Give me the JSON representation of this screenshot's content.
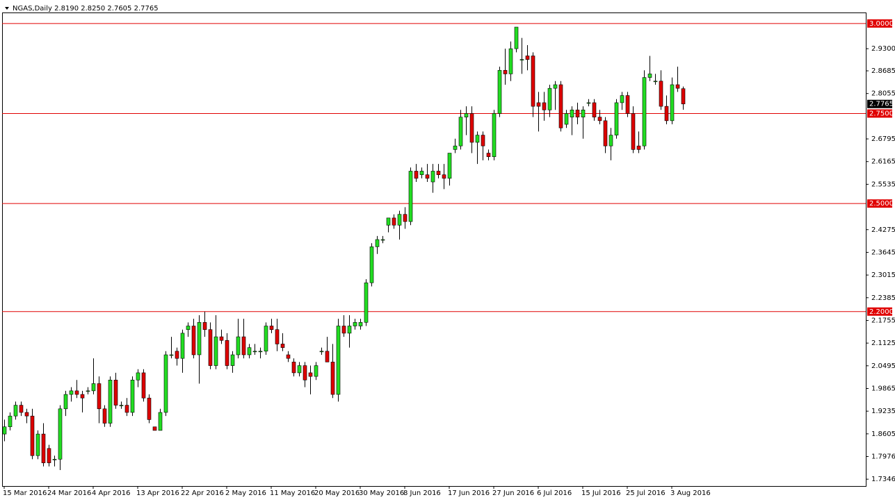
{
  "chart_data": {
    "type": "candlestick",
    "title": "NGAS,Daily 2.8190 2.8250 2.7605 2.7765",
    "categories": [
      "15 Mar 2016",
      null,
      null,
      null,
      null,
      null,
      null,
      null,
      "24 Mar 2016",
      null,
      null,
      null,
      null,
      null,
      null,
      null,
      "4 Apr 2016",
      null,
      null,
      null,
      null,
      null,
      null,
      null,
      "13 Apr 2016",
      null,
      null,
      null,
      null,
      null,
      null,
      null,
      "22 Apr 2016",
      null,
      null,
      null,
      null,
      null,
      null,
      null,
      "2 May 2016",
      null,
      null,
      null,
      null,
      null,
      null,
      null,
      "11 May 2016",
      null,
      null,
      null,
      null,
      null,
      null,
      null,
      "20 May 2016",
      null,
      null,
      null,
      null,
      null,
      null,
      null,
      "30 May 2016",
      null,
      null,
      null,
      null,
      null,
      null,
      null,
      "8 Jun 2016",
      null,
      null,
      null,
      null,
      null,
      null,
      null,
      "17 Jun 2016",
      null,
      null,
      null,
      null,
      null,
      null,
      null,
      "27 Jun 2016",
      null,
      null,
      null,
      null,
      null,
      null,
      null,
      "6 Jul 2016",
      null,
      null,
      null,
      null,
      null,
      null,
      null,
      "15 Jul 2016",
      null,
      null,
      null,
      null,
      null,
      null,
      null,
      "25 Jul 2016",
      null,
      null,
      null,
      null,
      null,
      null,
      null,
      "3 Aug 2016",
      null,
      null
    ],
    "open": [
      1.86,
      1.88,
      1.91,
      1.94,
      1.92,
      1.91,
      1.8,
      1.86,
      1.82,
      1.79,
      1.79,
      1.93,
      1.97,
      1.98,
      1.97,
      1.98,
      1.98,
      2.0,
      1.93,
      1.89,
      2.01,
      1.94,
      1.94,
      1.92,
      2.01,
      2.03,
      1.96,
      1.88,
      1.87,
      1.92,
      2.08,
      2.09,
      2.07,
      2.15,
      2.16,
      2.08,
      2.17,
      2.15,
      2.05,
      2.13,
      2.12,
      2.05,
      2.08,
      2.13,
      2.08,
      2.09,
      2.09,
      2.09,
      2.16,
      2.15,
      2.11,
      2.08,
      2.06,
      2.03,
      2.05,
      2.03,
      2.02,
      2.09,
      2.09,
      2.06,
      1.97,
      2.16,
      2.14,
      2.16,
      2.16,
      2.17,
      2.28,
      2.38,
      2.4,
      2.44,
      2.46,
      2.44,
      2.47,
      2.45,
      2.59,
      2.58,
      2.58,
      2.56,
      2.59,
      2.58,
      2.57,
      2.65,
      2.66,
      2.74,
      2.75,
      2.67,
      2.69,
      2.64,
      2.63,
      2.75,
      2.87,
      2.86,
      2.93,
      2.9,
      2.91,
      2.91,
      2.78,
      2.78,
      2.76,
      2.82,
      2.83,
      2.72,
      2.74,
      2.76,
      2.74,
      2.78,
      2.78,
      2.74,
      2.73,
      2.66,
      2.69,
      2.78,
      2.8,
      2.75,
      2.66,
      2.66,
      2.85,
      2.84,
      2.84,
      2.77,
      2.73,
      2.83,
      2.819
    ],
    "high": [
      1.9,
      1.92,
      1.95,
      1.95,
      1.93,
      1.93,
      1.87,
      1.89,
      1.83,
      1.8,
      1.94,
      1.98,
      1.99,
      2.01,
      1.98,
      1.99,
      2.07,
      2.02,
      1.94,
      2.02,
      2.03,
      1.95,
      1.96,
      2.02,
      2.04,
      2.04,
      1.97,
      1.88,
      1.93,
      2.09,
      2.13,
      2.1,
      2.15,
      2.17,
      2.18,
      2.19,
      2.2,
      2.17,
      2.19,
      2.15,
      2.14,
      2.09,
      2.18,
      2.18,
      2.11,
      2.11,
      2.1,
      2.17,
      2.18,
      2.18,
      2.14,
      2.09,
      2.07,
      2.06,
      2.06,
      2.05,
      2.06,
      2.1,
      2.13,
      2.11,
      2.18,
      2.19,
      2.19,
      2.18,
      2.18,
      2.29,
      2.39,
      2.41,
      2.41,
      2.46,
      2.47,
      2.48,
      2.49,
      2.6,
      2.61,
      2.6,
      2.61,
      2.61,
      2.61,
      2.61,
      2.64,
      2.68,
      2.76,
      2.77,
      2.77,
      2.7,
      2.7,
      2.65,
      2.76,
      2.88,
      2.93,
      2.95,
      2.99,
      2.96,
      2.94,
      2.92,
      2.81,
      2.81,
      2.83,
      2.84,
      2.84,
      2.76,
      2.77,
      2.78,
      2.77,
      2.79,
      2.79,
      2.76,
      2.74,
      2.71,
      2.79,
      2.81,
      2.81,
      2.77,
      2.7,
      2.87,
      2.91,
      2.86,
      2.87,
      2.8,
      2.85,
      2.88,
      2.825
    ],
    "low": [
      1.84,
      1.87,
      1.9,
      1.91,
      1.89,
      1.79,
      1.79,
      1.77,
      1.77,
      1.77,
      1.76,
      1.91,
      1.95,
      1.96,
      1.92,
      1.97,
      1.97,
      1.89,
      1.88,
      1.88,
      1.93,
      1.93,
      1.91,
      1.91,
      1.99,
      1.95,
      1.89,
      1.87,
      1.87,
      1.91,
      2.07,
      2.05,
      2.03,
      2.13,
      2.07,
      2.0,
      2.13,
      2.04,
      2.04,
      2.11,
      2.04,
      2.03,
      2.07,
      2.07,
      2.07,
      2.08,
      2.07,
      2.08,
      2.14,
      2.09,
      2.09,
      2.06,
      2.02,
      2.02,
      1.99,
      1.97,
      2.01,
      2.08,
      2.06,
      1.96,
      1.95,
      2.13,
      2.1,
      2.15,
      2.15,
      2.16,
      2.27,
      2.36,
      2.39,
      2.42,
      2.43,
      2.4,
      2.43,
      2.44,
      2.56,
      2.57,
      2.56,
      2.53,
      2.57,
      2.54,
      2.55,
      2.64,
      2.65,
      2.69,
      2.64,
      2.61,
      2.62,
      2.62,
      2.62,
      2.74,
      2.83,
      2.84,
      2.92,
      2.86,
      2.87,
      2.74,
      2.7,
      2.73,
      2.74,
      2.76,
      2.7,
      2.71,
      2.69,
      2.72,
      2.68,
      2.77,
      2.73,
      2.72,
      2.64,
      2.62,
      2.68,
      2.76,
      2.74,
      2.64,
      2.64,
      2.65,
      2.84,
      2.83,
      2.76,
      2.72,
      2.72,
      2.81,
      2.7605
    ],
    "close": [
      1.88,
      1.91,
      1.94,
      1.92,
      1.91,
      1.8,
      1.86,
      1.78,
      1.78,
      1.79,
      1.93,
      1.97,
      1.98,
      1.97,
      1.96,
      1.98,
      2.0,
      1.93,
      1.89,
      2.01,
      1.94,
      1.94,
      1.92,
      2.01,
      2.03,
      1.96,
      1.9,
      1.87,
      1.92,
      2.08,
      2.08,
      2.07,
      2.14,
      2.16,
      2.08,
      2.17,
      2.15,
      2.05,
      2.13,
      2.12,
      2.05,
      2.08,
      2.13,
      2.08,
      2.1,
      2.09,
      2.09,
      2.16,
      2.15,
      2.11,
      2.1,
      2.07,
      2.03,
      2.05,
      2.01,
      2.02,
      2.05,
      2.09,
      2.06,
      1.97,
      2.16,
      2.14,
      2.16,
      2.17,
      2.17,
      2.28,
      2.38,
      2.4,
      2.4,
      2.46,
      2.44,
      2.47,
      2.45,
      2.59,
      2.57,
      2.59,
      2.57,
      2.59,
      2.58,
      2.57,
      2.64,
      2.66,
      2.74,
      2.75,
      2.67,
      2.69,
      2.66,
      2.63,
      2.75,
      2.87,
      2.86,
      2.93,
      2.99,
      2.9,
      2.9,
      2.77,
      2.77,
      2.76,
      2.82,
      2.83,
      2.71,
      2.75,
      2.76,
      2.74,
      2.76,
      2.78,
      2.74,
      2.73,
      2.66,
      2.69,
      2.78,
      2.8,
      2.75,
      2.65,
      2.65,
      2.85,
      2.86,
      2.84,
      2.77,
      2.73,
      2.83,
      2.82,
      2.7765
    ],
    "up_color": "#22dd22",
    "down_color": "#dd0000",
    "level_color": "#e00000",
    "ylim": [
      1.7156,
      3.0305
    ],
    "yticks": [
      1.7346,
      1.7976,
      1.8605,
      1.9235,
      1.9865,
      2.0495,
      2.1125,
      2.1755,
      2.2385,
      2.3015,
      2.3645,
      2.4275,
      2.5535,
      2.6165,
      2.6795,
      2.8055,
      2.8685,
      {
        "value": 2.93,
        "label": "2.9300"
      }
    ],
    "levels": [
      {
        "value": 3,
        "label": "3.0000"
      },
      {
        "value": 2.75,
        "label": "2.7500"
      },
      {
        "value": 2.5,
        "label": "2.5000"
      },
      {
        "value": 2.2,
        "label": "2.2000"
      }
    ],
    "last_price": {
      "value": 2.7765,
      "label": "2.7765"
    }
  }
}
